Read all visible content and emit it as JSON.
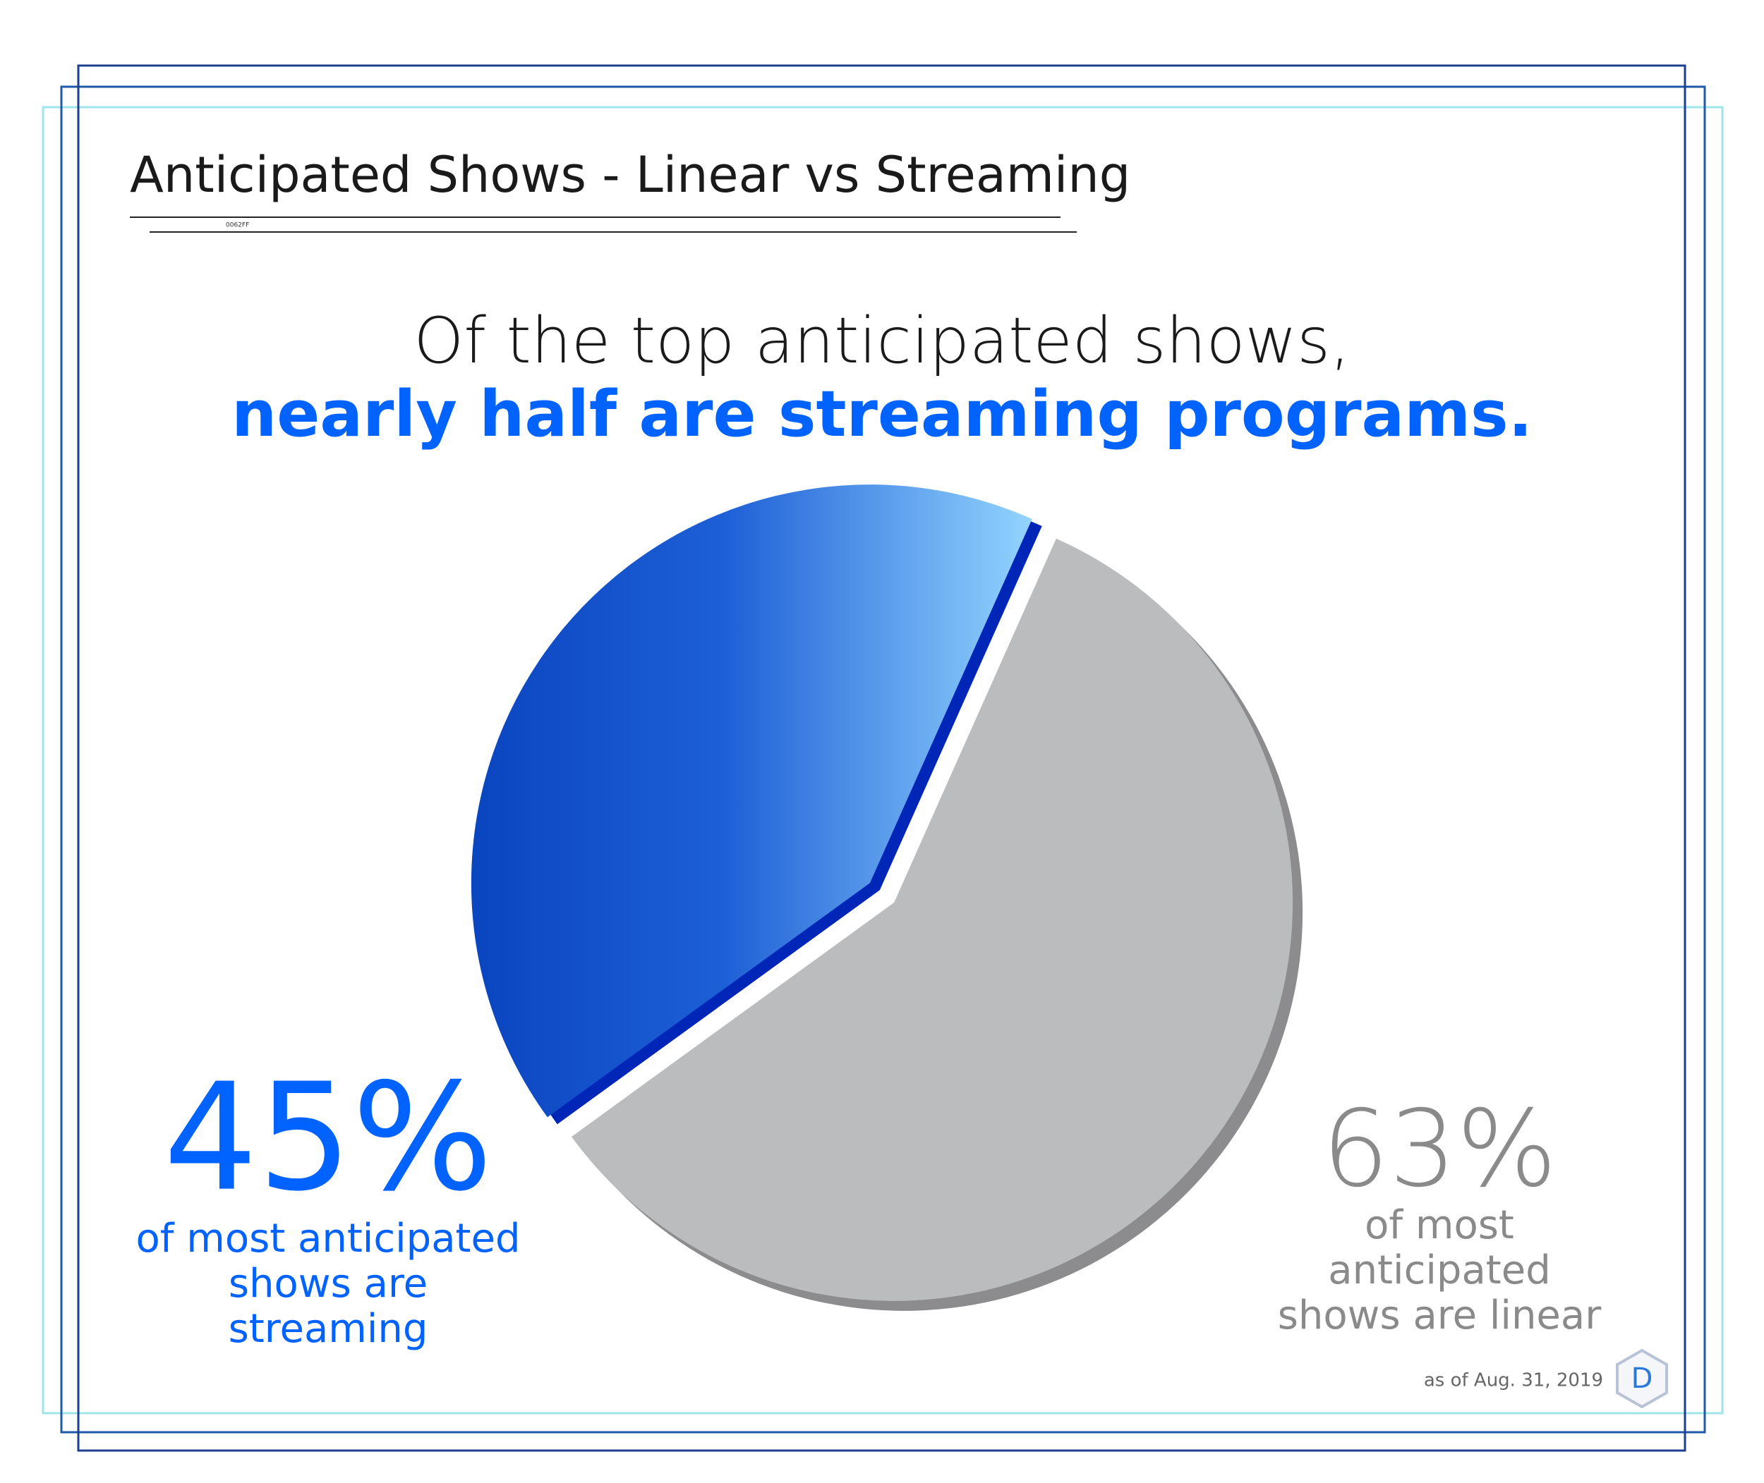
{
  "chart_data": {
    "type": "pie",
    "title": "Anticipated Shows - Linear vs Streaming",
    "title_note": "0062FF",
    "subtitle": [
      "Of the top anticipated shows,",
      "nearly half are streaming programs."
    ],
    "categories": [
      "of most anticipated shows are streaming",
      "of most anticipated shows are linear"
    ],
    "values": [
      45,
      63
    ],
    "value_labels": [
      "45%",
      "63%"
    ],
    "colors": [
      "#0062ff",
      "#bbbcbe"
    ],
    "footnote": "as of Aug. 31, 2019",
    "logo": "D"
  }
}
